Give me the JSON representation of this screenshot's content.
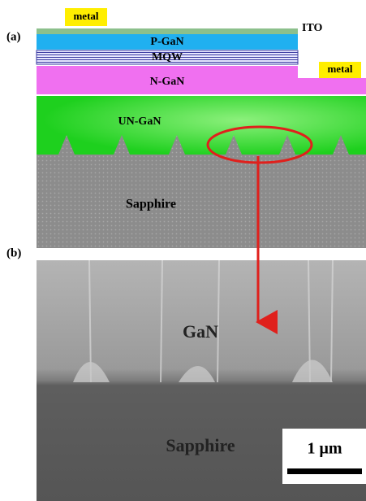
{
  "panel_a": {
    "label": "(a)",
    "metal_left": "metal",
    "ito": "ITO",
    "p_gan": "P-GaN",
    "mqw": "MQW",
    "metal_right": "metal",
    "n_gan": "N-GaN",
    "un_gan": "UN-GaN",
    "sapphire": "Sapphire"
  },
  "panel_b": {
    "label": "(b)",
    "gan": "GaN",
    "sapphire": "Sapphire",
    "scale_bar": "1 μm"
  }
}
